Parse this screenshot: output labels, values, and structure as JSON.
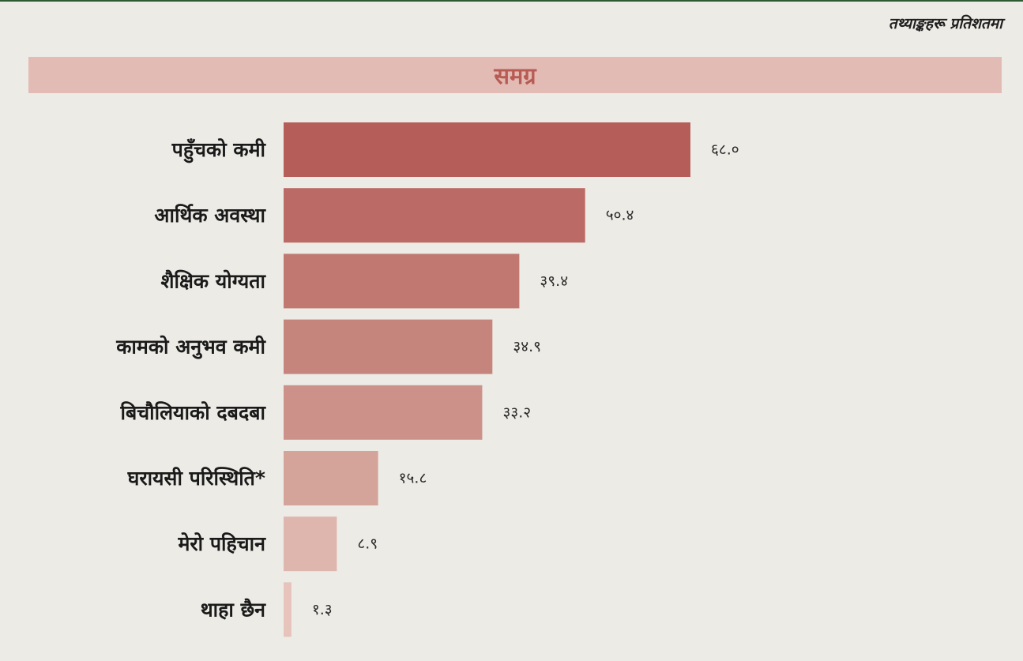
{
  "note": "तथ्याङ्कहरू प्रतिशतमा",
  "panel_title": "समग्र",
  "colors": {
    "background": "#edebe6",
    "banner": "#e2bcb4",
    "banner_text": "#b95b55",
    "top_rule": "#2e5a34"
  },
  "chart_data": {
    "type": "bar",
    "orientation": "horizontal",
    "title": "समग्र",
    "categories": [
      "पहुँचको कमी",
      "आर्थिक अवस्था",
      "शैक्षिक योग्यता",
      "कामको अनुभव कमी",
      "बिचौलियाको दबदबा",
      "घरायसी परिस्थिति*",
      "मेरो पहिचान",
      "थाहा छैन"
    ],
    "values": [
      68.0,
      50.4,
      39.4,
      34.9,
      33.2,
      15.8,
      8.9,
      1.3
    ],
    "value_labels": [
      "६८.०",
      "५०.४",
      "३९.४",
      "३४.९",
      "३३.२",
      "१५.८",
      "८.९",
      "१.३"
    ],
    "bar_colors": [
      "#b45d59",
      "#bb6a65",
      "#c07871",
      "#c6857c",
      "#cc928a",
      "#d4a49a",
      "#dfb6ad",
      "#e6c3bb"
    ],
    "xlim": [
      0,
      68
    ],
    "grid": false,
    "legend": "none"
  }
}
